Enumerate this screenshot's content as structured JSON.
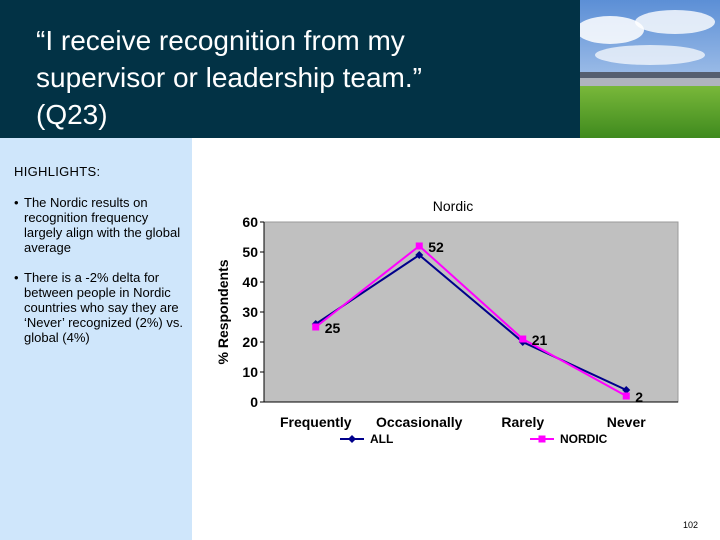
{
  "slide": {
    "title": "“I receive recognition from my\nsupervisor or leadership team.”\n(Q23)",
    "page_number": "102"
  },
  "highlights": {
    "heading": "HIGHLIGHTS:",
    "bullets": [
      "The Nordic results on recognition frequency largely align with the global average",
      "There is a -2% delta for between people in Nordic countries who say they are ‘Never’ recognized (2%) vs. global (4%)"
    ],
    "bullet_symbol": "•"
  },
  "chart_data": {
    "type": "line",
    "title": "Nordic",
    "ylabel": "% Respondents",
    "xlabel": "",
    "categories": [
      "Frequently",
      "Occasionally",
      "Rarely",
      "Never"
    ],
    "ylim": [
      0,
      60
    ],
    "yticks": [
      0,
      10,
      20,
      30,
      40,
      50,
      60
    ],
    "grid": false,
    "legend_position": "bottom",
    "plot_background": "#c0c0c0",
    "series": [
      {
        "name": "ALL",
        "values": [
          26,
          49,
          20,
          4
        ],
        "color": "#00008b",
        "marker": "diamond"
      },
      {
        "name": "NORDIC",
        "values": [
          25,
          52,
          21,
          2
        ],
        "color": "#ff00ff",
        "marker": "square"
      }
    ],
    "data_labels": [
      "25",
      "52",
      "21",
      "2"
    ]
  },
  "colors": {
    "title_band": "#023245",
    "sidebar": "#cfe6fb",
    "plot_area": "#c0c0c0"
  }
}
